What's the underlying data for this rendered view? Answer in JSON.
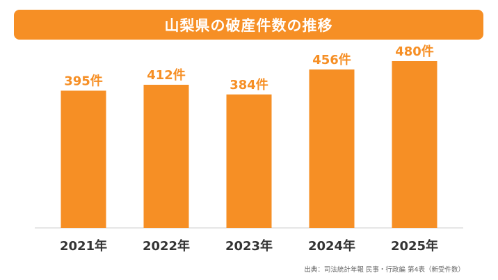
{
  "colors": {
    "accent": "#f68f25",
    "bar": "#f68f25",
    "value_label": "#f68f25",
    "axis_label": "#333333",
    "baseline": "#cccccc"
  },
  "chart_data": {
    "type": "bar",
    "title": "山梨県の破産件数の推移",
    "categories": [
      "2021年",
      "2022年",
      "2023年",
      "2024年",
      "2025年"
    ],
    "values": [
      395,
      412,
      384,
      456,
      480
    ],
    "value_labels": [
      "395件",
      "412件",
      "384件",
      "456件",
      "480件"
    ],
    "ylim": [
      0,
      500
    ],
    "grid": false,
    "source": "出典：司法統計年報 民事・行政編 第4表（新受件数）"
  }
}
